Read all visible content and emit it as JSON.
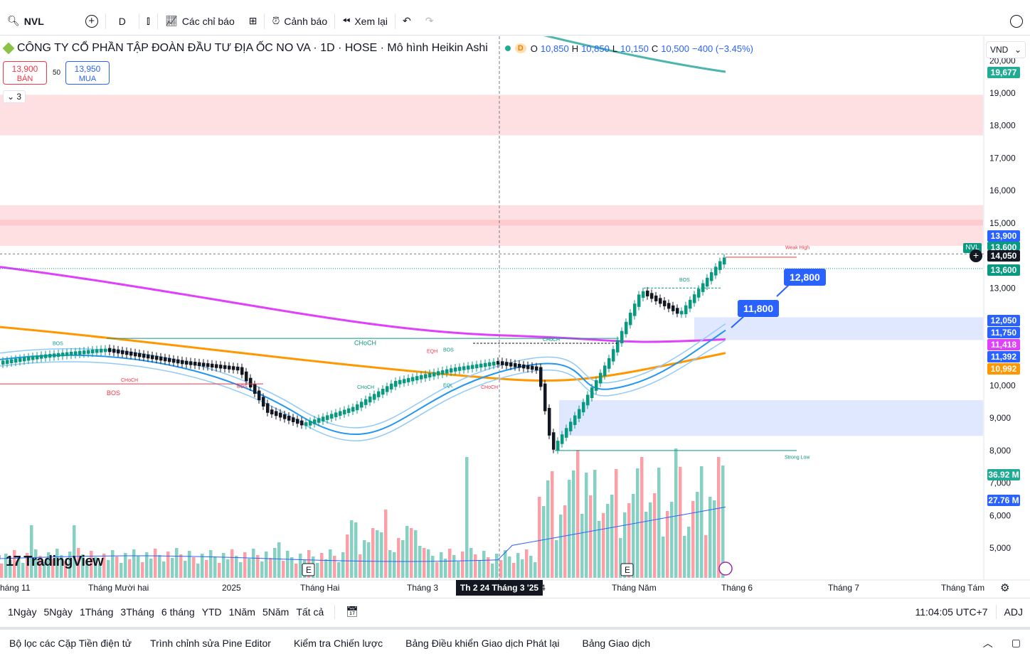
{
  "toolbar": {
    "symbol": "NVL",
    "interval": "D",
    "indicators_label": "Các chỉ báo",
    "alert_label": "Cảnh báo",
    "replay_label": "Xem lại"
  },
  "legend": {
    "title": "CÔNG TY CỔ PHẦN TẬP ĐOÀN ĐẦU TƯ ĐỊA ỐC NO VA · 1D · HOSE · Mô hình Heikin Ashi",
    "badge": "D",
    "o_key": "O",
    "o": "10,850",
    "h_key": "H",
    "h": "10,850",
    "l_key": "L",
    "l": "10,150",
    "c_key": "C",
    "c": "10,500",
    "change": "−400 (−3.45%)"
  },
  "trade": {
    "sell_price": "13,900",
    "sell_label": "BÁN",
    "spread": "50",
    "buy_price": "13,950",
    "buy_label": "MUA",
    "collapse_count": "3"
  },
  "currency": "VND",
  "price_axis": {
    "ticks": [
      "20,000",
      "19,000",
      "18,000",
      "17,000",
      "16,000",
      "15,000",
      "13,000",
      "10,000",
      "9,000",
      "8,000",
      "7,000",
      "6,000",
      "5,000"
    ],
    "labels": [
      {
        "text": "19,677",
        "color": "#22ab94"
      },
      {
        "text": "13,900",
        "color": "#2962ff"
      },
      {
        "text": "13,600",
        "color": "#089981"
      },
      {
        "text": "14,050",
        "color": "#131722"
      },
      {
        "text": "13,600",
        "color": "#089981"
      },
      {
        "text": "12,050",
        "color": "#2962ff"
      },
      {
        "text": "11,750",
        "color": "#2962ff"
      },
      {
        "text": "11,418",
        "color": "#e040fb"
      },
      {
        "text": "11,392",
        "color": "#2962ff"
      },
      {
        "text": "10,992",
        "color": "#ff9800"
      },
      {
        "text": "36.92 M",
        "color": "#22ab94"
      },
      {
        "text": "27.76 M",
        "color": "#2962ff"
      }
    ],
    "nvl_tag": "NVL"
  },
  "time_axis": {
    "labels": [
      "háng 11",
      "Tháng Mười hai",
      "2025",
      "Tháng Hai",
      "Tháng 3",
      "4",
      "Tháng Năm",
      "Tháng 6",
      "Tháng 7",
      "Tháng Tám"
    ],
    "crosshair_label": "Th 2 24 Tháng 3 '25"
  },
  "annotations": {
    "callout_1": "12,800",
    "callout_2": "11,800",
    "weak_high": "Weak High",
    "strong_low": "Strong Low",
    "bos": "BOS",
    "choch": "CHoCH",
    "eqh": "EQH",
    "eql": "EQL",
    "earnings": "E"
  },
  "logo": "TradingView",
  "range_bar": {
    "ranges": [
      "1Ngày",
      "5Ngày",
      "1Tháng",
      "3Tháng",
      "6 tháng",
      "YTD",
      "1Năm",
      "5Năm",
      "Tất cả"
    ],
    "time": "11:04:05 UTC+7",
    "adj": "ADJ"
  },
  "bottom_bar": {
    "items": [
      "Bộ lọc các Cặp Tiền điện tử",
      "Trình chỉnh sửa Pine Editor",
      "Kiểm tra Chiến lược",
      "Bảng Điều khiển Giao dịch Phát lại",
      "Bảng Giao dịch"
    ]
  },
  "colors": {
    "up": "#22ab94",
    "down": "#f7525f",
    "ma200": "#e040fb",
    "ma_orange": "#ff9800",
    "band": "#2196f3"
  }
}
